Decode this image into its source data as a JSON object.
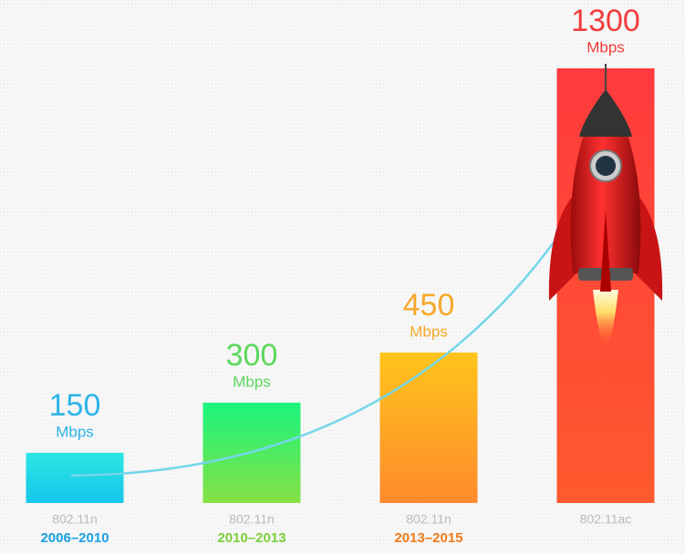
{
  "chart_data": {
    "type": "bar",
    "categories": [
      "802.11n",
      "802.11n",
      "802.11n",
      "802.11ac"
    ],
    "periods": [
      "2006–2010",
      "2010–2013",
      "2013–2015",
      null
    ],
    "unit": "Mbps",
    "values": [
      150,
      300,
      450,
      1300
    ],
    "colors": [
      [
        "#2ce6e2",
        "#16c6ec"
      ],
      [
        "#1af57e",
        "#86e044"
      ],
      [
        "#ffc41c",
        "#ff8a2c"
      ],
      [
        "#ff3a3e",
        "#ff5a2e"
      ]
    ],
    "label_colors": [
      "#2cb4e8",
      "#5cd85c",
      "#f7a82a",
      "#f23c3c"
    ],
    "period_colors": [
      "#1a9fe2",
      "#7ccf3a",
      "#ef7a1a",
      null
    ]
  }
}
